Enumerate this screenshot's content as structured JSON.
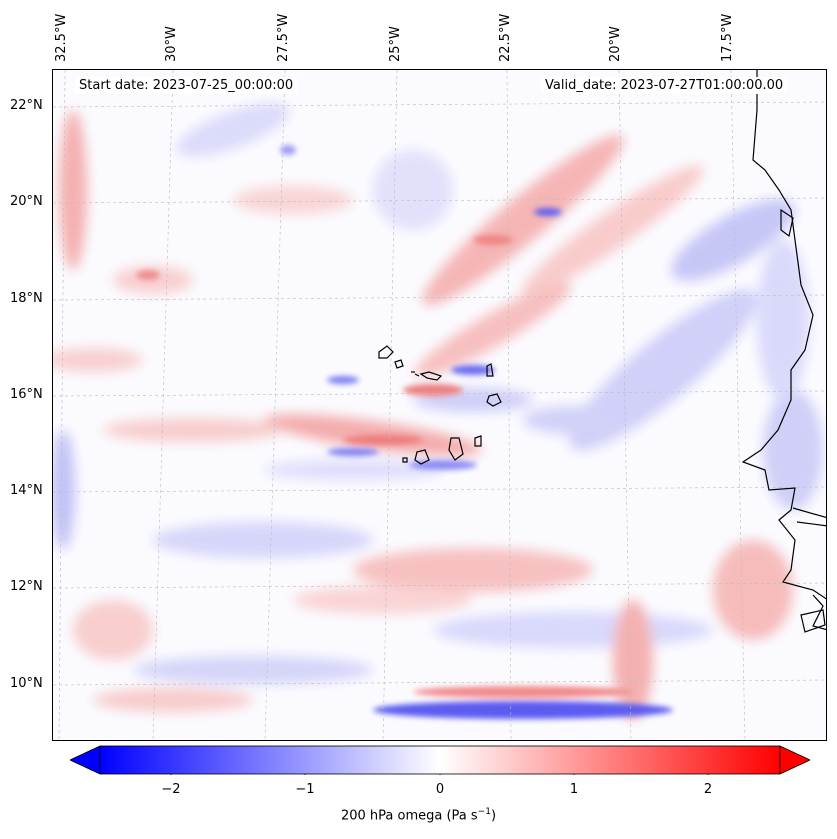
{
  "map": {
    "lon_labels": [
      "32.5°W",
      "30°W",
      "27.5°W",
      "25°W",
      "22.5°W",
      "20°W",
      "17.5°W"
    ],
    "lat_labels": [
      "22°N",
      "20°N",
      "18°N",
      "16°N",
      "14°N",
      "12°N",
      "10°N"
    ],
    "start_date": "Start date: 2023-07-25_00:00:00",
    "valid_date": "Valid_date: 2023-07-27T01:00:00.00",
    "field": "200 hPa omega",
    "colormap": "bwr",
    "colors": {
      "negative": "#0000ff",
      "zero": "#ffffff",
      "positive": "#ff0000",
      "coastline": "#000000",
      "grid": "#bbbbbb"
    }
  },
  "colorbar": {
    "ticks": [
      "−2",
      "−1",
      "0",
      "1",
      "2"
    ],
    "label": "200 hPa omega (Pa s",
    "label_sup": "−1",
    "label_end": ")",
    "range": [
      -2.6,
      2.6
    ]
  }
}
